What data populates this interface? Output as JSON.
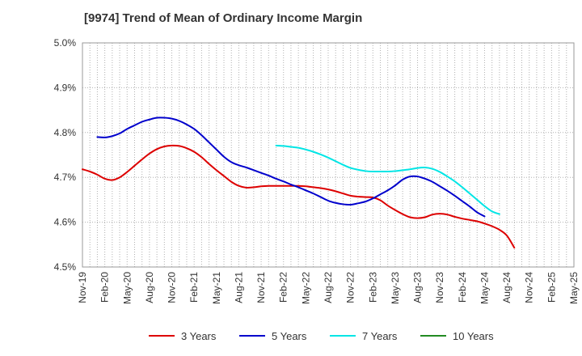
{
  "chart_data": {
    "type": "line",
    "title": "[9974]  Trend of Mean of Ordinary Income Margin",
    "xlabel": "",
    "ylabel": "",
    "x_tick_labels": [
      "Nov-19",
      "Feb-20",
      "May-20",
      "Aug-20",
      "Nov-20",
      "Feb-21",
      "May-21",
      "Aug-21",
      "Nov-21",
      "Feb-22",
      "May-22",
      "Aug-22",
      "Nov-22",
      "Feb-23",
      "May-23",
      "Aug-23",
      "Nov-23",
      "Feb-24",
      "May-24",
      "Aug-24",
      "Nov-24",
      "Feb-25",
      "May-25"
    ],
    "y_tick_labels": [
      "4.5%",
      "4.6%",
      "4.7%",
      "4.8%",
      "4.9%",
      "5.0%"
    ],
    "ylim": [
      4.5,
      5.0
    ],
    "x_months_range": [
      0,
      66
    ],
    "grid": true,
    "legend_position": "bottom",
    "series": [
      {
        "name": "3 Years",
        "color": "#dd0000",
        "points": [
          [
            0,
            4.718
          ],
          [
            1,
            4.713
          ],
          [
            2,
            4.706
          ],
          [
            3,
            4.697
          ],
          [
            4,
            4.694
          ],
          [
            5,
            4.7
          ],
          [
            6,
            4.712
          ],
          [
            7,
            4.726
          ],
          [
            8,
            4.74
          ],
          [
            9,
            4.753
          ],
          [
            10,
            4.763
          ],
          [
            11,
            4.769
          ],
          [
            12,
            4.771
          ],
          [
            13,
            4.77
          ],
          [
            14,
            4.765
          ],
          [
            15,
            4.757
          ],
          [
            16,
            4.745
          ],
          [
            17,
            4.73
          ],
          [
            18,
            4.716
          ],
          [
            19,
            4.703
          ],
          [
            20,
            4.69
          ],
          [
            21,
            4.681
          ],
          [
            22,
            4.677
          ],
          [
            23,
            4.678
          ],
          [
            24,
            4.68
          ],
          [
            25,
            4.681
          ],
          [
            26,
            4.681
          ],
          [
            27,
            4.681
          ],
          [
            28,
            4.681
          ],
          [
            29,
            4.681
          ],
          [
            30,
            4.68
          ],
          [
            31,
            4.678
          ],
          [
            32,
            4.676
          ],
          [
            33,
            4.673
          ],
          [
            34,
            4.669
          ],
          [
            35,
            4.664
          ],
          [
            36,
            4.659
          ],
          [
            37,
            4.657
          ],
          [
            38,
            4.656
          ],
          [
            39,
            4.655
          ],
          [
            40,
            4.649
          ],
          [
            41,
            4.637
          ],
          [
            42,
            4.627
          ],
          [
            43,
            4.618
          ],
          [
            44,
            4.611
          ],
          [
            45,
            4.609
          ],
          [
            46,
            4.611
          ],
          [
            47,
            4.617
          ],
          [
            48,
            4.619
          ],
          [
            49,
            4.617
          ],
          [
            50,
            4.612
          ],
          [
            51,
            4.608
          ],
          [
            52,
            4.605
          ],
          [
            53,
            4.602
          ],
          [
            54,
            4.597
          ],
          [
            55,
            4.591
          ],
          [
            56,
            4.583
          ],
          [
            57,
            4.57
          ],
          [
            58,
            4.543
          ]
        ]
      },
      {
        "name": "5 Years",
        "color": "#0000cc",
        "points": [
          [
            2,
            4.79
          ],
          [
            3,
            4.789
          ],
          [
            4,
            4.792
          ],
          [
            5,
            4.798
          ],
          [
            6,
            4.808
          ],
          [
            7,
            4.816
          ],
          [
            8,
            4.824
          ],
          [
            9,
            4.829
          ],
          [
            10,
            4.833
          ],
          [
            11,
            4.833
          ],
          [
            12,
            4.831
          ],
          [
            13,
            4.826
          ],
          [
            14,
            4.818
          ],
          [
            15,
            4.808
          ],
          [
            16,
            4.794
          ],
          [
            17,
            4.778
          ],
          [
            18,
            4.762
          ],
          [
            19,
            4.746
          ],
          [
            20,
            4.734
          ],
          [
            21,
            4.727
          ],
          [
            22,
            4.722
          ],
          [
            23,
            4.716
          ],
          [
            24,
            4.71
          ],
          [
            25,
            4.704
          ],
          [
            26,
            4.697
          ],
          [
            27,
            4.691
          ],
          [
            28,
            4.684
          ],
          [
            29,
            4.678
          ],
          [
            30,
            4.671
          ],
          [
            31,
            4.664
          ],
          [
            32,
            4.656
          ],
          [
            33,
            4.648
          ],
          [
            34,
            4.643
          ],
          [
            35,
            4.64
          ],
          [
            36,
            4.639
          ],
          [
            37,
            4.642
          ],
          [
            38,
            4.646
          ],
          [
            39,
            4.653
          ],
          [
            40,
            4.662
          ],
          [
            41,
            4.671
          ],
          [
            42,
            4.682
          ],
          [
            43,
            4.695
          ],
          [
            44,
            4.702
          ],
          [
            45,
            4.702
          ],
          [
            46,
            4.697
          ],
          [
            47,
            4.69
          ],
          [
            48,
            4.68
          ],
          [
            49,
            4.67
          ],
          [
            50,
            4.659
          ],
          [
            51,
            4.647
          ],
          [
            52,
            4.635
          ],
          [
            53,
            4.622
          ],
          [
            54,
            4.613
          ]
        ]
      },
      {
        "name": "7 Years",
        "color": "#00e5e5",
        "points": [
          [
            26,
            4.771
          ],
          [
            27,
            4.77
          ],
          [
            28,
            4.768
          ],
          [
            29,
            4.766
          ],
          [
            30,
            4.762
          ],
          [
            31,
            4.757
          ],
          [
            32,
            4.751
          ],
          [
            33,
            4.744
          ],
          [
            34,
            4.736
          ],
          [
            35,
            4.728
          ],
          [
            36,
            4.721
          ],
          [
            37,
            4.717
          ],
          [
            38,
            4.714
          ],
          [
            39,
            4.713
          ],
          [
            40,
            4.713
          ],
          [
            41,
            4.713
          ],
          [
            42,
            4.714
          ],
          [
            43,
            4.716
          ],
          [
            44,
            4.718
          ],
          [
            45,
            4.721
          ],
          [
            46,
            4.722
          ],
          [
            47,
            4.719
          ],
          [
            48,
            4.712
          ],
          [
            49,
            4.702
          ],
          [
            50,
            4.691
          ],
          [
            51,
            4.678
          ],
          [
            52,
            4.664
          ],
          [
            53,
            4.65
          ],
          [
            54,
            4.636
          ],
          [
            55,
            4.624
          ],
          [
            56,
            4.618
          ]
        ]
      },
      {
        "name": "10 Years",
        "color": "#228b22",
        "points": []
      }
    ]
  }
}
